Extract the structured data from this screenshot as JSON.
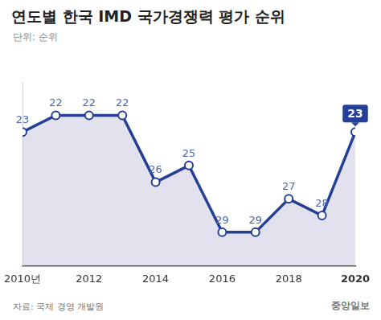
{
  "chart_data": {
    "type": "line",
    "title": "연도별 한국 IMD 국가경쟁력 평가 순위",
    "subtitle": "단위: 순위",
    "source": "자료: 국제 경영 개발원",
    "credit": "중앙일보",
    "categories": [
      "2010년",
      null,
      "2012",
      null,
      "2014",
      null,
      "2016",
      null,
      "2018",
      null,
      "2020"
    ],
    "values": [
      23,
      22,
      22,
      22,
      26,
      25,
      29,
      29,
      27,
      28,
      23
    ],
    "color": "#243f95",
    "ylim": [
      31,
      20
    ],
    "grid": false,
    "data_labels": true,
    "tick_labels": "x",
    "marker": "circle"
  }
}
